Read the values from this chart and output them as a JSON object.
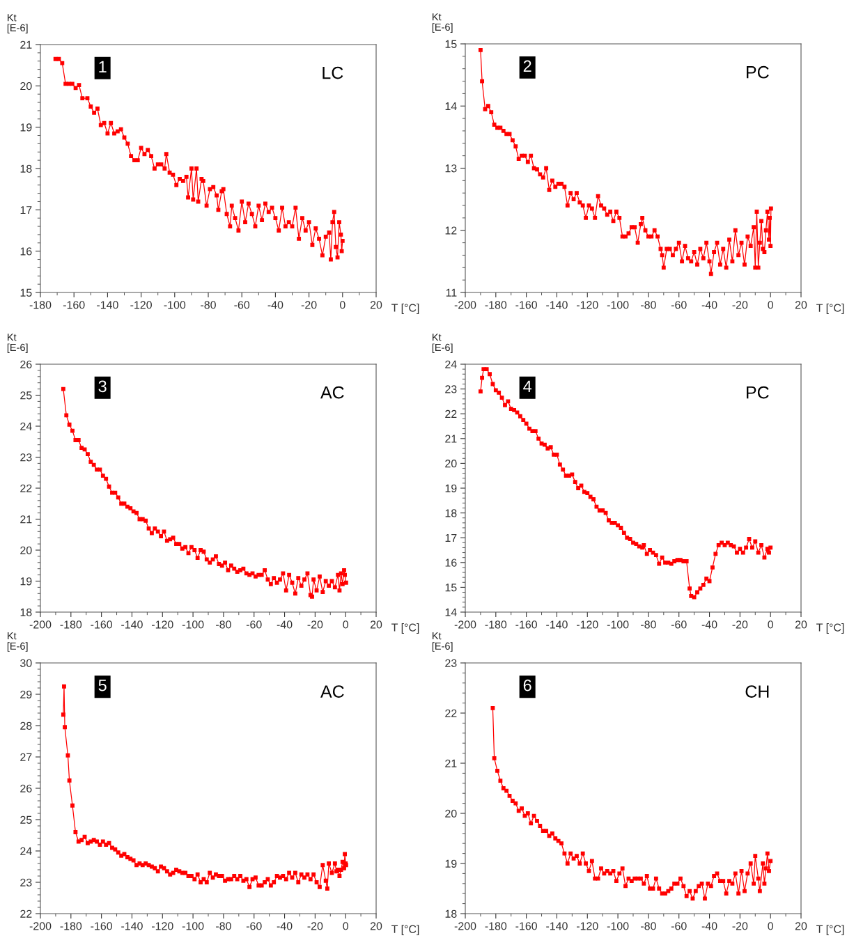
{
  "chart_data": [
    {
      "type": "line",
      "xlabel": "T [°C]",
      "ylabel": "Kt\n[E-6]",
      "annotations": [
        "1",
        "LC"
      ],
      "color": "#ff0000",
      "marker": "square",
      "line_style": "solid",
      "grid": false,
      "legend": false,
      "xlim": [
        -180,
        20
      ],
      "xticks": [
        -180,
        -160,
        -140,
        -120,
        -100,
        -80,
        -60,
        -40,
        -20,
        0,
        20
      ],
      "ylim": [
        15,
        21
      ],
      "yticks": [
        15,
        16,
        17,
        18,
        19,
        20,
        21
      ],
      "x": [
        -171,
        -169,
        -167,
        -165,
        -163,
        -161,
        -159,
        -157,
        -155,
        -152,
        -150,
        -148,
        -146,
        -144,
        -142,
        -140,
        -138,
        -136,
        -134,
        -132,
        -130,
        -128,
        -126,
        -124,
        -122,
        -120,
        -118,
        -116,
        -114,
        -112,
        -110,
        -108,
        -106,
        -105,
        -103,
        -101,
        -99,
        -97,
        -95,
        -93,
        -92,
        -90,
        -89,
        -87,
        -86,
        -84,
        -83,
        -81,
        -79,
        -77,
        -75,
        -74,
        -72,
        -71,
        -69,
        -67,
        -66,
        -64,
        -62,
        -60,
        -58,
        -56,
        -54,
        -52,
        -50,
        -48,
        -46,
        -44,
        -42,
        -40,
        -38,
        -36,
        -34,
        -32,
        -30,
        -28,
        -26,
        -24,
        -22,
        -20,
        -18,
        -16,
        -14,
        -12,
        -10,
        -8,
        -7,
        -6,
        -5,
        -4,
        -3,
        -2,
        -1,
        -0.5,
        0
      ],
      "values": [
        20.65,
        20.65,
        20.55,
        20.05,
        20.05,
        20.05,
        19.95,
        20.02,
        19.7,
        19.7,
        19.5,
        19.35,
        19.45,
        19.05,
        19.1,
        18.85,
        19.1,
        18.85,
        18.9,
        18.95,
        18.75,
        18.6,
        18.3,
        18.2,
        18.2,
        18.5,
        18.35,
        18.45,
        18.3,
        18.0,
        18.1,
        18.1,
        18.0,
        18.35,
        17.9,
        17.85,
        17.6,
        17.75,
        17.7,
        17.8,
        17.3,
        18.0,
        17.25,
        18.0,
        17.2,
        17.75,
        17.7,
        17.1,
        17.5,
        17.55,
        17.35,
        17.0,
        17.45,
        17.5,
        16.9,
        16.6,
        17.1,
        16.8,
        16.5,
        17.2,
        16.7,
        17.15,
        16.9,
        16.6,
        17.1,
        16.75,
        17.15,
        16.95,
        17.05,
        16.8,
        16.5,
        17.05,
        16.6,
        16.7,
        16.6,
        17.05,
        16.3,
        16.8,
        16.5,
        16.7,
        16.15,
        16.55,
        16.3,
        15.9,
        16.35,
        16.45,
        15.8,
        16.7,
        16.95,
        16.1,
        15.85,
        16.7,
        16.4,
        16.0,
        16.25
      ]
    },
    {
      "type": "line",
      "xlabel": "T [°C]",
      "ylabel": "Kt\n[E-6]",
      "annotations": [
        "2",
        "PC"
      ],
      "color": "#ff0000",
      "marker": "square",
      "line_style": "solid",
      "grid": false,
      "legend": false,
      "xlim": [
        -200,
        20
      ],
      "xticks": [
        -200,
        -180,
        -160,
        -140,
        -120,
        -100,
        -80,
        -60,
        -40,
        -20,
        0,
        20
      ],
      "ylim": [
        11,
        15
      ],
      "yticks": [
        11,
        12,
        13,
        14,
        15
      ],
      "x": [
        -190,
        -189,
        -187,
        -185,
        -183,
        -181,
        -179,
        -177,
        -175,
        -173,
        -171,
        -169,
        -167,
        -165,
        -163,
        -161,
        -159,
        -157,
        -155,
        -153,
        -151,
        -149,
        -147,
        -145,
        -143,
        -141,
        -139,
        -137,
        -135,
        -133,
        -131,
        -129,
        -127,
        -125,
        -123,
        -121,
        -119,
        -117,
        -115,
        -113,
        -111,
        -109,
        -107,
        -105,
        -103,
        -101,
        -99,
        -97,
        -95,
        -93,
        -91,
        -89,
        -87,
        -85,
        -84,
        -82,
        -80,
        -78,
        -76,
        -74,
        -72,
        -71,
        -70,
        -68,
        -66,
        -64,
        -62,
        -60,
        -58,
        -56,
        -54,
        -52,
        -50,
        -48,
        -46,
        -44,
        -42,
        -40,
        -39,
        -37,
        -35,
        -33,
        -31,
        -29,
        -27,
        -25,
        -23,
        -21,
        -19,
        -17,
        -15,
        -13,
        -11,
        -10,
        -9,
        -8,
        -7,
        -6,
        -5,
        -4,
        -3,
        -2,
        -1,
        -0.5,
        0,
        0.3
      ],
      "values": [
        14.9,
        14.4,
        13.95,
        14.0,
        13.9,
        13.7,
        13.65,
        13.65,
        13.6,
        13.55,
        13.55,
        13.45,
        13.35,
        13.15,
        13.2,
        13.2,
        13.1,
        13.2,
        13.0,
        12.98,
        12.9,
        12.85,
        13.0,
        12.65,
        12.8,
        12.7,
        12.75,
        12.75,
        12.7,
        12.4,
        12.6,
        12.5,
        12.6,
        12.45,
        12.4,
        12.2,
        12.4,
        12.35,
        12.2,
        12.55,
        12.4,
        12.35,
        12.25,
        12.3,
        12.15,
        12.3,
        12.2,
        11.9,
        11.9,
        11.95,
        12.05,
        12.05,
        11.8,
        12.1,
        12.2,
        12.0,
        11.9,
        11.9,
        12.0,
        11.9,
        11.7,
        11.6,
        11.4,
        11.7,
        11.7,
        11.6,
        11.7,
        11.8,
        11.5,
        11.75,
        11.55,
        11.5,
        11.65,
        11.45,
        11.7,
        11.55,
        11.8,
        11.5,
        11.3,
        11.65,
        11.8,
        11.45,
        11.7,
        11.4,
        11.85,
        11.5,
        12.0,
        11.6,
        11.8,
        11.45,
        11.9,
        11.75,
        12.05,
        11.4,
        12.3,
        11.4,
        11.8,
        12.15,
        11.7,
        11.65,
        12.0,
        12.3,
        11.85,
        12.2,
        11.75,
        12.35
      ]
    },
    {
      "type": "line",
      "xlabel": "T [°C]",
      "ylabel": "Kt\n[E-6]",
      "annotations": [
        "3",
        "AC"
      ],
      "color": "#ff0000",
      "marker": "square",
      "line_style": "solid",
      "grid": false,
      "legend": false,
      "xlim": [
        -200,
        20
      ],
      "xticks": [
        -200,
        -180,
        -160,
        -140,
        -120,
        -100,
        -80,
        -60,
        -40,
        -20,
        0,
        20
      ],
      "ylim": [
        18,
        26
      ],
      "yticks": [
        18,
        19,
        20,
        21,
        22,
        23,
        24,
        25,
        26
      ],
      "x": [
        -185,
        -183,
        -181,
        -179,
        -177,
        -175,
        -173,
        -171,
        -169,
        -167,
        -165,
        -163,
        -161,
        -159,
        -157,
        -155,
        -153,
        -151,
        -149,
        -147,
        -145,
        -143,
        -141,
        -139,
        -137,
        -135,
        -133,
        -131,
        -129,
        -127,
        -125,
        -123,
        -121,
        -119,
        -117,
        -115,
        -113,
        -111,
        -109,
        -107,
        -105,
        -103,
        -101,
        -99,
        -97,
        -95,
        -93,
        -91,
        -89,
        -87,
        -85,
        -83,
        -81,
        -79,
        -77,
        -75,
        -73,
        -71,
        -69,
        -67,
        -65,
        -63,
        -61,
        -59,
        -57,
        -55,
        -53,
        -51,
        -49,
        -47,
        -45,
        -43,
        -41,
        -39,
        -37,
        -35,
        -33,
        -31,
        -29,
        -27,
        -25,
        -23,
        -22,
        -21,
        -19,
        -17,
        -15,
        -13,
        -11,
        -9,
        -7,
        -5,
        -4,
        -3,
        -2,
        -1,
        -0.5,
        0.3
      ],
      "values": [
        25.2,
        24.35,
        24.05,
        23.85,
        23.55,
        23.55,
        23.3,
        23.25,
        23.1,
        22.85,
        22.75,
        22.6,
        22.6,
        22.4,
        22.3,
        22.05,
        21.85,
        21.85,
        21.7,
        21.5,
        21.5,
        21.4,
        21.35,
        21.25,
        21.2,
        21.0,
        21.0,
        20.95,
        20.7,
        20.55,
        20.7,
        20.6,
        20.45,
        20.6,
        20.3,
        20.35,
        20.4,
        20.2,
        20.2,
        20.05,
        20.1,
        19.9,
        20.1,
        20.0,
        19.75,
        20.0,
        19.95,
        19.7,
        19.6,
        19.7,
        19.8,
        19.55,
        19.5,
        19.6,
        19.35,
        19.5,
        19.4,
        19.3,
        19.35,
        19.4,
        19.25,
        19.2,
        19.25,
        19.15,
        19.2,
        19.2,
        19.35,
        19.05,
        18.9,
        19.1,
        18.95,
        19.05,
        19.25,
        18.7,
        19.2,
        18.95,
        18.6,
        19.1,
        18.85,
        19.05,
        19.25,
        18.55,
        18.5,
        19.05,
        18.7,
        19.15,
        18.65,
        19.0,
        18.85,
        19.0,
        18.8,
        19.2,
        18.7,
        19.25,
        18.9,
        19.35,
        19.2,
        18.95
      ]
    },
    {
      "type": "line",
      "xlabel": "T [°C]",
      "ylabel": "Kt\n[E-6]",
      "annotations": [
        "4",
        "PC"
      ],
      "color": "#ff0000",
      "marker": "square",
      "line_style": "solid",
      "grid": false,
      "legend": false,
      "xlim": [
        -200,
        20
      ],
      "xticks": [
        -200,
        -180,
        -160,
        -140,
        -120,
        -100,
        -80,
        -60,
        -40,
        -20,
        0,
        20
      ],
      "ylim": [
        14,
        24
      ],
      "yticks": [
        14,
        15,
        16,
        17,
        18,
        19,
        20,
        21,
        22,
        23,
        24
      ],
      "x": [
        -190,
        -189,
        -188,
        -186,
        -184,
        -182,
        -180,
        -178,
        -176,
        -174,
        -172,
        -170,
        -168,
        -166,
        -164,
        -162,
        -160,
        -158,
        -156,
        -154,
        -152,
        -150,
        -148,
        -146,
        -144,
        -142,
        -140,
        -138,
        -136,
        -134,
        -132,
        -130,
        -128,
        -126,
        -124,
        -122,
        -120,
        -118,
        -116,
        -114,
        -112,
        -110,
        -108,
        -106,
        -104,
        -102,
        -100,
        -98,
        -96,
        -94,
        -92,
        -90,
        -88,
        -86,
        -84,
        -83,
        -81,
        -79,
        -77,
        -75,
        -73,
        -71,
        -69,
        -67,
        -65,
        -63,
        -61,
        -59,
        -57,
        -55,
        -53,
        -52,
        -50,
        -48,
        -46,
        -44,
        -42,
        -40,
        -38,
        -36,
        -34,
        -32,
        -30,
        -28,
        -26,
        -24,
        -22,
        -20,
        -18,
        -16,
        -14,
        -12,
        -10,
        -8,
        -6,
        -4,
        -2,
        -1,
        0
      ],
      "values": [
        22.9,
        23.45,
        23.8,
        23.8,
        23.6,
        23.2,
        22.95,
        22.85,
        22.65,
        22.35,
        22.5,
        22.2,
        22.15,
        22.05,
        21.9,
        21.75,
        21.6,
        21.4,
        21.3,
        21.3,
        21.0,
        20.8,
        20.75,
        20.6,
        20.65,
        20.35,
        20.35,
        19.95,
        19.75,
        19.5,
        19.5,
        19.55,
        19.25,
        19.0,
        19.1,
        18.85,
        18.8,
        18.65,
        18.55,
        18.25,
        18.1,
        18.1,
        18.0,
        17.7,
        17.6,
        17.6,
        17.5,
        17.4,
        17.2,
        17.0,
        16.95,
        16.8,
        16.75,
        16.65,
        16.6,
        16.7,
        16.35,
        16.5,
        16.4,
        16.3,
        15.95,
        16.2,
        16.0,
        16.0,
        15.95,
        16.05,
        16.1,
        16.1,
        16.05,
        16.05,
        14.95,
        14.65,
        14.6,
        14.8,
        14.95,
        15.1,
        15.35,
        15.25,
        15.8,
        16.35,
        16.7,
        16.8,
        16.7,
        16.8,
        16.7,
        16.65,
        16.4,
        16.55,
        16.4,
        16.6,
        16.95,
        16.6,
        16.85,
        16.4,
        16.7,
        16.2,
        16.55,
        16.4,
        16.6
      ]
    },
    {
      "type": "line",
      "xlabel": "T [°C]",
      "ylabel": "Kt\n[E-6]",
      "annotations": [
        "5",
        "AC"
      ],
      "color": "#ff0000",
      "marker": "square",
      "line_style": "solid",
      "grid": false,
      "legend": false,
      "xlim": [
        -200,
        20
      ],
      "xticks": [
        -200,
        -180,
        -160,
        -140,
        -120,
        -100,
        -80,
        -60,
        -40,
        -20,
        0,
        20
      ],
      "ylim": [
        22,
        30
      ],
      "yticks": [
        22,
        23,
        24,
        25,
        26,
        27,
        28,
        29,
        30
      ],
      "x": [
        -185,
        -184.5,
        -184,
        -182,
        -181,
        -179,
        -177,
        -175,
        -173,
        -171,
        -169,
        -167,
        -165,
        -163,
        -161,
        -159,
        -157,
        -155,
        -153,
        -151,
        -149,
        -147,
        -145,
        -143,
        -141,
        -139,
        -137,
        -135,
        -133,
        -131,
        -129,
        -127,
        -125,
        -123,
        -121,
        -119,
        -117,
        -115,
        -113,
        -111,
        -109,
        -107,
        -105,
        -103,
        -101,
        -99,
        -97,
        -95,
        -93,
        -91,
        -89,
        -87,
        -85,
        -83,
        -81,
        -79,
        -77,
        -75,
        -73,
        -71,
        -69,
        -67,
        -65,
        -63,
        -61,
        -59,
        -57,
        -55,
        -53,
        -51,
        -49,
        -47,
        -45,
        -43,
        -41,
        -39,
        -37,
        -35,
        -33,
        -31,
        -29,
        -27,
        -25,
        -23,
        -21,
        -19,
        -17,
        -15,
        -13,
        -12,
        -11,
        -9,
        -7,
        -6,
        -5,
        -4,
        -3,
        -2,
        -1,
        -0.5,
        0,
        0.3
      ],
      "values": [
        28.35,
        29.25,
        27.95,
        27.05,
        26.25,
        25.45,
        24.6,
        24.3,
        24.35,
        24.45,
        24.25,
        24.3,
        24.35,
        24.3,
        24.2,
        24.3,
        24.2,
        24.25,
        24.1,
        24.05,
        23.95,
        23.85,
        23.9,
        23.8,
        23.75,
        23.7,
        23.55,
        23.6,
        23.55,
        23.6,
        23.55,
        23.5,
        23.45,
        23.35,
        23.5,
        23.45,
        23.35,
        23.25,
        23.3,
        23.4,
        23.35,
        23.3,
        23.3,
        23.2,
        23.2,
        23.1,
        23.25,
        23.0,
        23.1,
        23.0,
        23.3,
        23.15,
        23.25,
        23.2,
        23.2,
        23.05,
        23.1,
        23.1,
        23.2,
        23.1,
        23.2,
        23.05,
        23.1,
        22.85,
        23.1,
        23.15,
        22.9,
        22.9,
        23.0,
        23.1,
        22.9,
        23.0,
        23.2,
        23.15,
        23.2,
        23.1,
        23.3,
        23.15,
        23.3,
        23.0,
        23.25,
        23.15,
        23.25,
        23.1,
        23.25,
        23.0,
        22.85,
        23.55,
        23.05,
        22.8,
        23.6,
        23.3,
        23.6,
        23.35,
        23.4,
        23.2,
        23.4,
        23.65,
        23.45,
        23.9,
        23.6,
        23.55
      ]
    },
    {
      "type": "line",
      "xlabel": "T [°C]",
      "ylabel": "Kt\n[E-6]",
      "annotations": [
        "6",
        "CH"
      ],
      "color": "#ff0000",
      "marker": "square",
      "line_style": "solid",
      "grid": false,
      "legend": false,
      "xlim": [
        -200,
        20
      ],
      "xticks": [
        -200,
        -180,
        -160,
        -140,
        -120,
        -100,
        -80,
        -60,
        -40,
        -20,
        0,
        20
      ],
      "ylim": [
        18,
        23
      ],
      "yticks": [
        18,
        19,
        20,
        21,
        22,
        23
      ],
      "x": [
        -182,
        -181,
        -179,
        -177,
        -175,
        -173,
        -171,
        -169,
        -167,
        -165,
        -163,
        -161,
        -159,
        -157,
        -155,
        -153,
        -151,
        -149,
        -147,
        -145,
        -143,
        -141,
        -139,
        -137,
        -135,
        -133,
        -131,
        -129,
        -127,
        -125,
        -123,
        -121,
        -119,
        -117,
        -115,
        -113,
        -111,
        -109,
        -107,
        -105,
        -103,
        -101,
        -99,
        -97,
        -95,
        -93,
        -91,
        -89,
        -87,
        -85,
        -83,
        -81,
        -79,
        -77,
        -75,
        -73,
        -71,
        -69,
        -67,
        -65,
        -63,
        -61,
        -59,
        -57,
        -55,
        -53,
        -51,
        -49,
        -47,
        -45,
        -43,
        -41,
        -39,
        -37,
        -35,
        -33,
        -31,
        -29,
        -27,
        -25,
        -23,
        -21,
        -19,
        -17,
        -15,
        -13,
        -11,
        -10,
        -8,
        -7,
        -5,
        -4,
        -3,
        -2,
        -1,
        0
      ],
      "values": [
        22.1,
        21.1,
        20.85,
        20.65,
        20.5,
        20.45,
        20.35,
        20.25,
        20.2,
        20.05,
        20.1,
        19.95,
        20.0,
        19.8,
        19.95,
        19.85,
        19.75,
        19.65,
        19.65,
        19.55,
        19.6,
        19.5,
        19.45,
        19.4,
        19.2,
        19.0,
        19.2,
        19.1,
        19.15,
        19.0,
        19.2,
        19.0,
        18.85,
        19.05,
        18.7,
        18.7,
        18.9,
        18.8,
        18.85,
        18.8,
        18.85,
        18.65,
        18.8,
        18.9,
        18.55,
        18.7,
        18.65,
        18.7,
        18.7,
        18.7,
        18.6,
        18.75,
        18.5,
        18.5,
        18.7,
        18.5,
        18.4,
        18.4,
        18.45,
        18.5,
        18.6,
        18.6,
        18.7,
        18.55,
        18.35,
        18.45,
        18.3,
        18.45,
        18.55,
        18.6,
        18.3,
        18.6,
        18.55,
        18.75,
        18.8,
        18.65,
        18.65,
        18.4,
        18.65,
        18.6,
        18.8,
        18.4,
        18.85,
        18.45,
        18.8,
        19.0,
        18.6,
        19.15,
        18.7,
        18.45,
        19.0,
        18.6,
        18.9,
        19.2,
        18.85,
        19.05
      ]
    }
  ]
}
